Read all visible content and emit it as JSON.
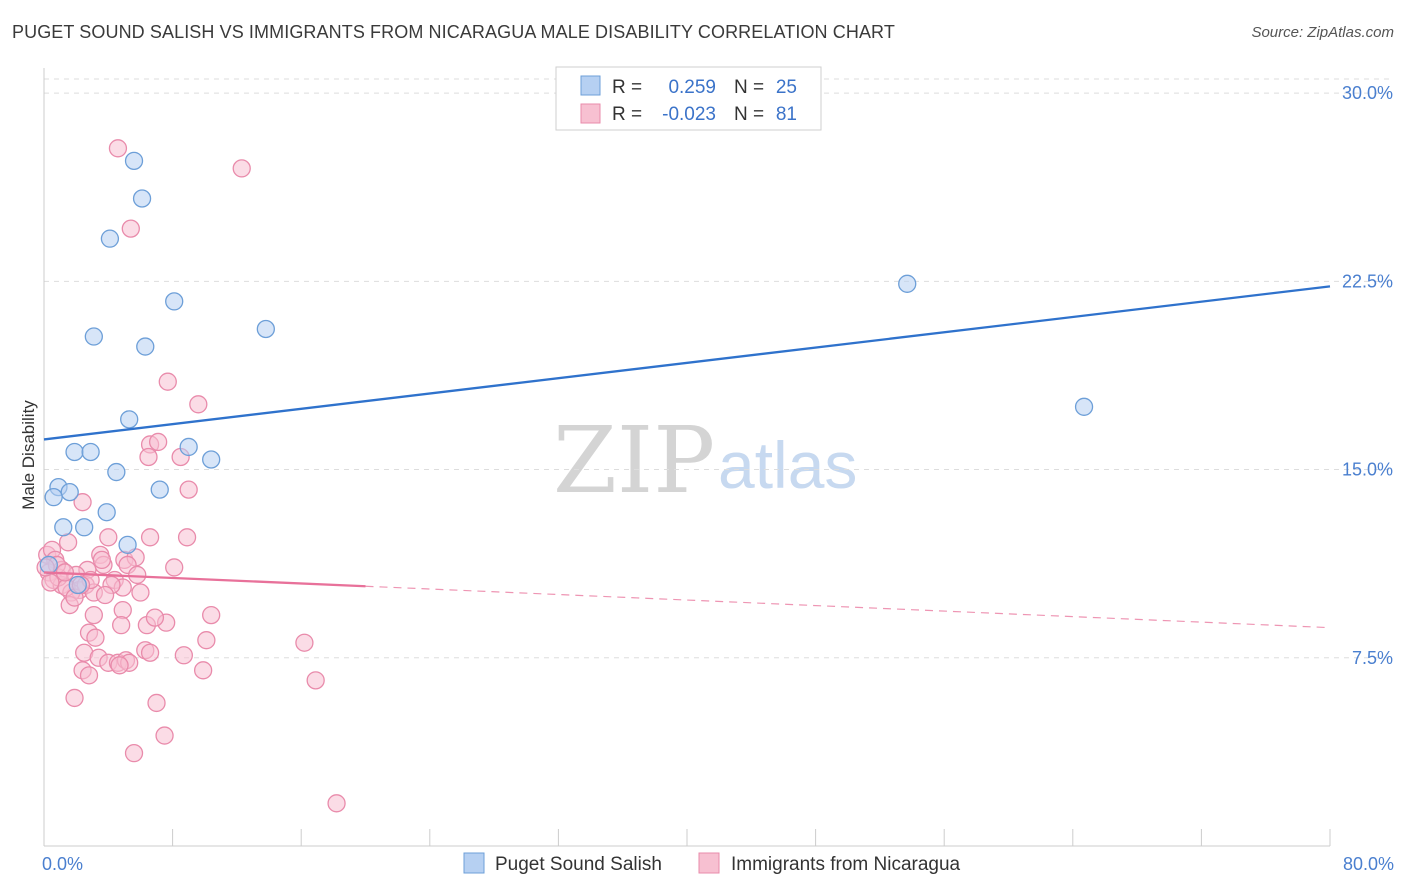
{
  "title": "PUGET SOUND SALISH VS IMMIGRANTS FROM NICARAGUA MALE DISABILITY CORRELATION CHART",
  "source": "Source: ZipAtlas.com",
  "watermark": {
    "zip": "ZIP",
    "atlas": "atlas"
  },
  "colors": {
    "blue_fill": "#b6d0f2",
    "blue_stroke": "#6d9fd8",
    "blue_line": "#2f72cc",
    "pink_fill": "#f7c0d1",
    "pink_stroke": "#e98bab",
    "pink_line": "#e8719a",
    "tick_text": "#4a7fcf",
    "grid": "#dddddd"
  },
  "legend": {
    "rows": [
      {
        "r_label": "R = ",
        "r_value": "0.259",
        "n_label": "N = ",
        "n_value": "25"
      },
      {
        "r_label": "R = ",
        "r_value": "-0.023",
        "n_label": "N = ",
        "n_value": "81"
      }
    ]
  },
  "chart_data": {
    "type": "scatter",
    "title": "PUGET SOUND SALISH VS IMMIGRANTS FROM NICARAGUA MALE DISABILITY CORRELATION CHART",
    "xlabel": "",
    "ylabel": "Male Disability",
    "xlim": [
      0,
      80
    ],
    "ylim": [
      0,
      31
    ],
    "x_tick_labels": [
      "0.0%",
      "80.0%"
    ],
    "y_ticks": [
      7.5,
      15.0,
      22.5,
      30.0
    ],
    "y_tick_labels": [
      "7.5%",
      "15.0%",
      "22.5%",
      "30.0%"
    ],
    "grid": true,
    "legend_position": "top-center",
    "series": [
      {
        "name": "Puget Sound Salish",
        "r": 0.259,
        "n": 25,
        "trend": {
          "x0": 0,
          "y0": 16.2,
          "x1": 80,
          "y1": 22.3,
          "solid_until": 80
        },
        "points": [
          [
            5.6,
            27.3
          ],
          [
            6.1,
            25.8
          ],
          [
            4.1,
            24.2
          ],
          [
            8.1,
            21.7
          ],
          [
            13.8,
            20.6
          ],
          [
            3.1,
            20.3
          ],
          [
            6.3,
            19.9
          ],
          [
            53.7,
            22.4
          ],
          [
            64.7,
            17.5
          ],
          [
            5.3,
            17.0
          ],
          [
            1.9,
            15.7
          ],
          [
            2.9,
            15.7
          ],
          [
            9.0,
            15.9
          ],
          [
            10.4,
            15.4
          ],
          [
            4.5,
            14.9
          ],
          [
            0.9,
            14.3
          ],
          [
            1.6,
            14.1
          ],
          [
            0.6,
            13.9
          ],
          [
            7.2,
            14.2
          ],
          [
            3.9,
            13.3
          ],
          [
            1.2,
            12.7
          ],
          [
            2.5,
            12.7
          ],
          [
            5.2,
            12.0
          ],
          [
            2.1,
            10.4
          ],
          [
            0.3,
            11.2
          ]
        ]
      },
      {
        "name": "Immigrants from Nicaragua",
        "r": -0.023,
        "n": 81,
        "trend": {
          "x0": 0,
          "y0": 10.9,
          "x1": 80,
          "y1": 8.7,
          "solid_until": 20
        },
        "points": [
          [
            4.6,
            27.8
          ],
          [
            12.3,
            27.0
          ],
          [
            5.4,
            24.6
          ],
          [
            7.7,
            18.5
          ],
          [
            9.6,
            17.6
          ],
          [
            6.6,
            16.0
          ],
          [
            7.1,
            16.1
          ],
          [
            6.5,
            15.5
          ],
          [
            8.5,
            15.5
          ],
          [
            9.0,
            14.2
          ],
          [
            2.4,
            13.7
          ],
          [
            6.6,
            12.3
          ],
          [
            8.9,
            12.3
          ],
          [
            4.0,
            12.3
          ],
          [
            1.5,
            12.1
          ],
          [
            0.2,
            11.6
          ],
          [
            0.5,
            11.8
          ],
          [
            0.7,
            11.4
          ],
          [
            1.1,
            11.0
          ],
          [
            3.5,
            11.6
          ],
          [
            5.0,
            11.4
          ],
          [
            5.7,
            11.5
          ],
          [
            3.7,
            11.2
          ],
          [
            0.3,
            10.9
          ],
          [
            2.7,
            11.0
          ],
          [
            2.0,
            10.8
          ],
          [
            0.6,
            10.6
          ],
          [
            1.1,
            10.4
          ],
          [
            2.2,
            10.2
          ],
          [
            1.7,
            10.1
          ],
          [
            0.9,
            10.7
          ],
          [
            4.4,
            10.6
          ],
          [
            2.6,
            10.4
          ],
          [
            1.4,
            10.3
          ],
          [
            3.1,
            10.1
          ],
          [
            4.9,
            10.3
          ],
          [
            6.0,
            10.1
          ],
          [
            4.2,
            10.4
          ],
          [
            5.2,
            11.2
          ],
          [
            8.1,
            11.1
          ],
          [
            1.6,
            9.6
          ],
          [
            3.1,
            9.2
          ],
          [
            4.9,
            9.4
          ],
          [
            7.6,
            8.9
          ],
          [
            10.4,
            9.2
          ],
          [
            2.8,
            8.5
          ],
          [
            3.2,
            8.3
          ],
          [
            4.8,
            8.8
          ],
          [
            6.4,
            8.8
          ],
          [
            10.1,
            8.2
          ],
          [
            16.2,
            8.1
          ],
          [
            2.5,
            7.7
          ],
          [
            3.4,
            7.5
          ],
          [
            4.0,
            7.3
          ],
          [
            4.6,
            7.3
          ],
          [
            5.1,
            7.4
          ],
          [
            5.3,
            7.3
          ],
          [
            6.3,
            7.8
          ],
          [
            6.6,
            7.7
          ],
          [
            8.7,
            7.6
          ],
          [
            2.4,
            7.0
          ],
          [
            2.8,
            6.8
          ],
          [
            9.9,
            7.0
          ],
          [
            16.9,
            6.6
          ],
          [
            1.9,
            5.9
          ],
          [
            7.0,
            5.7
          ],
          [
            7.5,
            4.4
          ],
          [
            5.6,
            3.7
          ],
          [
            18.2,
            1.7
          ],
          [
            4.7,
            7.2
          ],
          [
            0.8,
            11.2
          ],
          [
            1.3,
            10.9
          ],
          [
            2.9,
            10.6
          ],
          [
            3.8,
            10.0
          ],
          [
            5.8,
            10.8
          ],
          [
            0.4,
            10.5
          ],
          [
            1.9,
            9.9
          ],
          [
            2.3,
            10.4
          ],
          [
            6.9,
            9.1
          ],
          [
            3.6,
            11.4
          ],
          [
            0.1,
            11.1
          ]
        ]
      }
    ]
  }
}
